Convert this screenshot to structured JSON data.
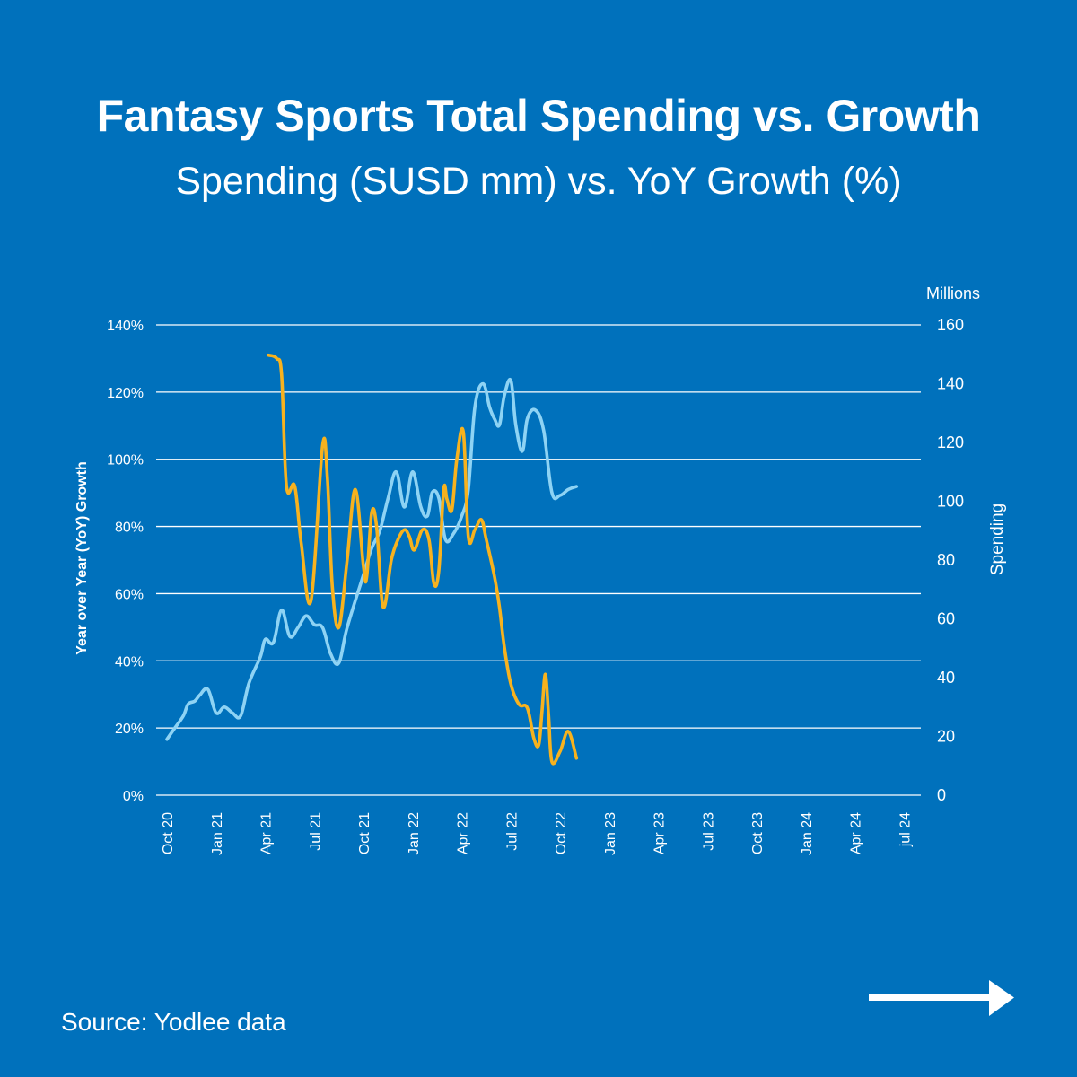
{
  "title": "Fantasy Sports Total Spending vs. Growth",
  "subtitle": "Spending (SUSD mm) vs. YoY Growth (%)",
  "source": "Source: Yodlee data",
  "colors": {
    "background": "#0071BC",
    "spending_line": "#8ED3F4",
    "growth_line": "#F7B21E",
    "grid": "#FFFFFF"
  },
  "chart_data": {
    "type": "line",
    "title": "Fantasy Sports Total Spending vs. Growth",
    "subtitle": "Spending (SUSD mm) vs. YoY Growth (%)",
    "x_tick_labels": [
      "Oct 20",
      "Jan 21",
      "Apr 21",
      "Jul 21",
      "Oct 21",
      "Jan 22",
      "Apr 22",
      "Jul 22",
      "Oct 22",
      "Jan 23",
      "Apr 23",
      "Jul 23",
      "Oct 23",
      "Jan 24",
      "Apr 24",
      "jul 24"
    ],
    "y_left": {
      "label": "Year over Year (YoY) Growth",
      "range": [
        0,
        140
      ],
      "ticks": [
        0,
        20,
        40,
        60,
        80,
        100,
        120,
        140
      ],
      "tick_labels": [
        "0%",
        "20%",
        "40%",
        "60%",
        "80%",
        "100%",
        "120%",
        "140%"
      ]
    },
    "y_right": {
      "label": "Spending",
      "unit_label": "Millions",
      "range": [
        0,
        160
      ],
      "ticks": [
        0,
        20,
        40,
        60,
        80,
        100,
        120,
        140,
        160
      ],
      "tick_labels": [
        "0",
        "20",
        "40",
        "60",
        "80",
        "100",
        "120",
        "140",
        "160"
      ]
    },
    "grid": true,
    "series": [
      {
        "name": "Spending",
        "axis": "right",
        "unit": "USD millions",
        "points": [
          [
            0,
            19
          ],
          [
            0.5,
            23
          ],
          [
            1,
            27
          ],
          [
            1.3,
            31
          ],
          [
            1.7,
            32
          ],
          [
            2,
            34
          ],
          [
            2.5,
            36
          ],
          [
            3,
            28
          ],
          [
            3.5,
            30
          ],
          [
            4,
            28
          ],
          [
            4.5,
            27
          ],
          [
            5,
            38
          ],
          [
            5.7,
            47
          ],
          [
            6,
            53
          ],
          [
            6.5,
            52
          ],
          [
            7,
            63
          ],
          [
            7.5,
            54
          ],
          [
            8,
            57
          ],
          [
            8.5,
            61
          ],
          [
            9,
            58
          ],
          [
            9.5,
            57
          ],
          [
            10,
            48
          ],
          [
            10.5,
            45
          ],
          [
            11,
            57
          ],
          [
            12,
            75
          ],
          [
            12.5,
            84
          ],
          [
            13,
            90
          ],
          [
            13.5,
            101
          ],
          [
            14,
            110
          ],
          [
            14.5,
            98
          ],
          [
            15,
            110
          ],
          [
            15.5,
            98
          ],
          [
            15.9,
            95
          ],
          [
            16.2,
            103
          ],
          [
            16.6,
            101
          ],
          [
            17,
            87
          ],
          [
            17.5,
            89
          ],
          [
            18,
            95
          ],
          [
            18.4,
            104
          ],
          [
            18.8,
            132
          ],
          [
            19.3,
            140
          ],
          [
            19.7,
            132
          ],
          [
            20,
            128
          ],
          [
            20.3,
            126
          ],
          [
            20.6,
            136
          ],
          [
            21,
            141
          ],
          [
            21.3,
            126
          ],
          [
            21.7,
            117
          ],
          [
            22,
            128
          ],
          [
            22.5,
            131
          ],
          [
            23,
            124
          ],
          [
            23.5,
            103
          ],
          [
            24,
            102
          ],
          [
            24.5,
            104
          ],
          [
            25,
            105
          ]
        ]
      },
      {
        "name": "YoY Growth",
        "axis": "left",
        "unit": "%",
        "points": [
          [
            6.2,
            131
          ],
          [
            6.7,
            130
          ],
          [
            7.0,
            125
          ],
          [
            7.3,
            92
          ],
          [
            7.8,
            92
          ],
          [
            8.2,
            75
          ],
          [
            8.8,
            58
          ],
          [
            9.5,
            104
          ],
          [
            9.8,
            94
          ],
          [
            10.1,
            62
          ],
          [
            10.5,
            50
          ],
          [
            11,
            70
          ],
          [
            11.5,
            91
          ],
          [
            12,
            68
          ],
          [
            12.2,
            65
          ],
          [
            12.5,
            84
          ],
          [
            12.8,
            80
          ],
          [
            13.2,
            56
          ],
          [
            13.7,
            70
          ],
          [
            14.1,
            76
          ],
          [
            14.5,
            79
          ],
          [
            14.8,
            77
          ],
          [
            15.1,
            73
          ],
          [
            15.6,
            79
          ],
          [
            16,
            76
          ],
          [
            16.3,
            63
          ],
          [
            16.6,
            67
          ],
          [
            16.9,
            91
          ],
          [
            17.1,
            88
          ],
          [
            17.4,
            85
          ],
          [
            17.7,
            100
          ],
          [
            18.1,
            108
          ],
          [
            18.4,
            77
          ],
          [
            18.8,
            79
          ],
          [
            19.2,
            82
          ],
          [
            19.5,
            76
          ],
          [
            20,
            65
          ],
          [
            20.3,
            56
          ],
          [
            20.6,
            44
          ],
          [
            21,
            33
          ],
          [
            21.5,
            27
          ],
          [
            22,
            26
          ],
          [
            22.4,
            17
          ],
          [
            22.7,
            15
          ],
          [
            22.9,
            25
          ],
          [
            23.1,
            36
          ],
          [
            23.3,
            24
          ],
          [
            23.5,
            10
          ],
          [
            24,
            13
          ],
          [
            24.5,
            19
          ],
          [
            25,
            11
          ]
        ]
      }
    ]
  }
}
